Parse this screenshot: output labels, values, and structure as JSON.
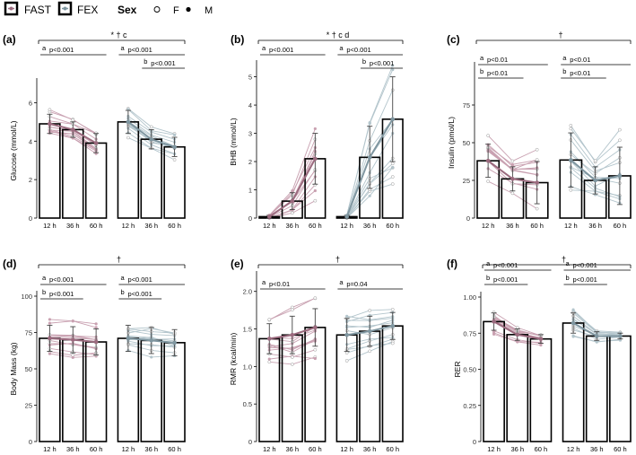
{
  "legend": {
    "fast_label": "FAST",
    "fex_label": "FEX",
    "sex_title": "Sex",
    "female_label": "F",
    "male_label": "M"
  },
  "colors": {
    "fast": "#9b6a7e",
    "fex": "#7f96a0",
    "fast_light": "#c9a1b1",
    "fex_light": "#b3c5cc",
    "axis": "#000000",
    "bar_fill": "#ffffff"
  },
  "chart_data": [
    {
      "id": "a",
      "panel_label": "(a)",
      "type": "bar",
      "ylabel": "Glucose (mmol/L)",
      "ylim": [
        0,
        7
      ],
      "yticks": [
        0,
        2,
        4,
        6
      ],
      "categories": [
        "12 h",
        "36 h",
        "60 h"
      ],
      "series": [
        {
          "name": "FAST",
          "values": [
            4.9,
            4.6,
            3.9
          ],
          "errors": [
            0.5,
            0.4,
            0.5
          ]
        },
        {
          "name": "FEX",
          "values": [
            5.0,
            4.1,
            3.7
          ],
          "errors": [
            0.6,
            0.5,
            0.5
          ]
        }
      ],
      "top_annotation": "* † c",
      "left_annotations": [
        {
          "letter": "a",
          "text": "p<0.001",
          "span": [
            0,
            2
          ]
        }
      ],
      "right_annotations": [
        {
          "letter": "a",
          "text": "p<0.001",
          "span": [
            0,
            2
          ]
        },
        {
          "letter": "b",
          "text": "p<0.001",
          "span": [
            1,
            2
          ]
        }
      ]
    },
    {
      "id": "b",
      "panel_label": "(b)",
      "type": "bar",
      "ylabel": "BHB (mmol/L)",
      "ylim": [
        0,
        5.4
      ],
      "yticks": [
        0,
        1,
        2,
        3,
        4,
        5
      ],
      "categories": [
        "12 h",
        "36 h",
        "60 h"
      ],
      "series": [
        {
          "name": "FAST",
          "values": [
            0.05,
            0.6,
            2.1
          ],
          "errors": [
            0.05,
            0.3,
            0.9
          ]
        },
        {
          "name": "FEX",
          "values": [
            0.05,
            2.15,
            3.5
          ],
          "errors": [
            0.05,
            1.1,
            1.5
          ]
        }
      ],
      "top_annotation": "* † c d",
      "left_annotations": [
        {
          "letter": "a",
          "text": "p<0.001",
          "span": [
            0,
            2
          ]
        }
      ],
      "right_annotations": [
        {
          "letter": "a",
          "text": "p<0.001",
          "span": [
            0,
            2
          ]
        },
        {
          "letter": "b",
          "text": "p<0.001",
          "span": [
            1,
            2
          ]
        }
      ]
    },
    {
      "id": "c",
      "panel_label": "(c)",
      "type": "bar",
      "ylabel": "Insulin (pmol/L)",
      "ylim": [
        0,
        100
      ],
      "yticks": [
        0,
        25,
        50,
        75
      ],
      "categories": [
        "12 h",
        "36 h",
        "60 h"
      ],
      "series": [
        {
          "name": "FAST",
          "values": [
            38,
            26,
            23.5
          ],
          "errors": [
            11,
            8,
            14
          ]
        },
        {
          "name": "FEX",
          "values": [
            38.5,
            25,
            28
          ],
          "errors": [
            18,
            9,
            19
          ]
        }
      ],
      "top_annotation": "†",
      "left_annotations": [
        {
          "letter": "a",
          "text": "p<0.01",
          "span": [
            0,
            2
          ]
        },
        {
          "letter": "b",
          "text": "p<0.01",
          "span": [
            0,
            1
          ]
        }
      ],
      "right_annotations": [
        {
          "letter": "a",
          "text": "p<0.01",
          "span": [
            0,
            2
          ]
        },
        {
          "letter": "b",
          "text": "p<0.01",
          "span": [
            0,
            1
          ]
        }
      ]
    },
    {
      "id": "d",
      "panel_label": "(d)",
      "type": "bar",
      "ylabel": "Body Mass (kg)",
      "ylim": [
        0,
        100
      ],
      "yticks": [
        0,
        25,
        50,
        75,
        100
      ],
      "categories": [
        "12 h",
        "36 h",
        "60 h"
      ],
      "series": [
        {
          "name": "FAST",
          "values": [
            71,
            70,
            68.5
          ],
          "errors": [
            9,
            9,
            9
          ]
        },
        {
          "name": "FEX",
          "values": [
            71,
            69.5,
            68
          ],
          "errors": [
            9,
            9,
            9
          ]
        }
      ],
      "top_annotation": "†",
      "left_annotations": [
        {
          "letter": "a",
          "text": "p<0.001",
          "span": [
            0,
            2
          ]
        },
        {
          "letter": "b",
          "text": "p<0.001",
          "span": [
            0,
            1
          ]
        }
      ],
      "right_annotations": [
        {
          "letter": "a",
          "text": "p<0.001",
          "span": [
            0,
            2
          ]
        },
        {
          "letter": "b",
          "text": "p<0.001",
          "span": [
            0,
            1
          ]
        }
      ]
    },
    {
      "id": "e",
      "panel_label": "(e)",
      "type": "bar",
      "ylabel": "RMR (kcal/min)",
      "ylim": [
        0,
        2.2
      ],
      "yticks": [
        0,
        0.5,
        1.0,
        1.5,
        2.0
      ],
      "ytick_labels": [
        "0",
        "0.5",
        "1.0",
        "1.5",
        "2.0"
      ],
      "categories": [
        "12 h",
        "36 h",
        "60 h"
      ],
      "series": [
        {
          "name": "FAST",
          "values": [
            1.37,
            1.42,
            1.52
          ],
          "errors": [
            0.2,
            0.25,
            0.25
          ]
        },
        {
          "name": "FEX",
          "values": [
            1.42,
            1.47,
            1.54
          ],
          "errors": [
            0.22,
            0.2,
            0.18
          ]
        }
      ],
      "top_annotation": "†",
      "left_annotations": [
        {
          "letter": "a",
          "text": "p<0.01",
          "span": [
            0,
            2
          ]
        }
      ],
      "right_annotations": [
        {
          "letter": "a",
          "text": "p=0.04",
          "span": [
            0,
            2
          ]
        }
      ]
    },
    {
      "id": "f",
      "panel_label": "(f)",
      "type": "bar",
      "ylabel": "RER",
      "ylim": [
        0,
        1.0
      ],
      "yticks": [
        0,
        0.25,
        0.5,
        0.75,
        1.0
      ],
      "ytick_labels": [
        "0",
        "0.25",
        "0.50",
        "0.75",
        "1.00"
      ],
      "categories": [
        "12 h",
        "36 h",
        "60 h"
      ],
      "series": [
        {
          "name": "FAST",
          "values": [
            0.83,
            0.74,
            0.71
          ],
          "errors": [
            0.06,
            0.04,
            0.03
          ]
        },
        {
          "name": "FEX",
          "values": [
            0.82,
            0.73,
            0.73
          ],
          "errors": [
            0.07,
            0.03,
            0.02
          ]
        }
      ],
      "top_annotation": "†",
      "left_annotations": [
        {
          "letter": "a",
          "text": "p<0.001",
          "span": [
            0,
            2
          ]
        },
        {
          "letter": "b",
          "text": "p<0.001",
          "span": [
            0,
            1
          ]
        }
      ],
      "right_annotations": [
        {
          "letter": "a",
          "text": "p<0.001",
          "span": [
            0,
            2
          ]
        },
        {
          "letter": "b",
          "text": "p<0.001",
          "span": [
            0,
            1
          ]
        }
      ]
    }
  ]
}
